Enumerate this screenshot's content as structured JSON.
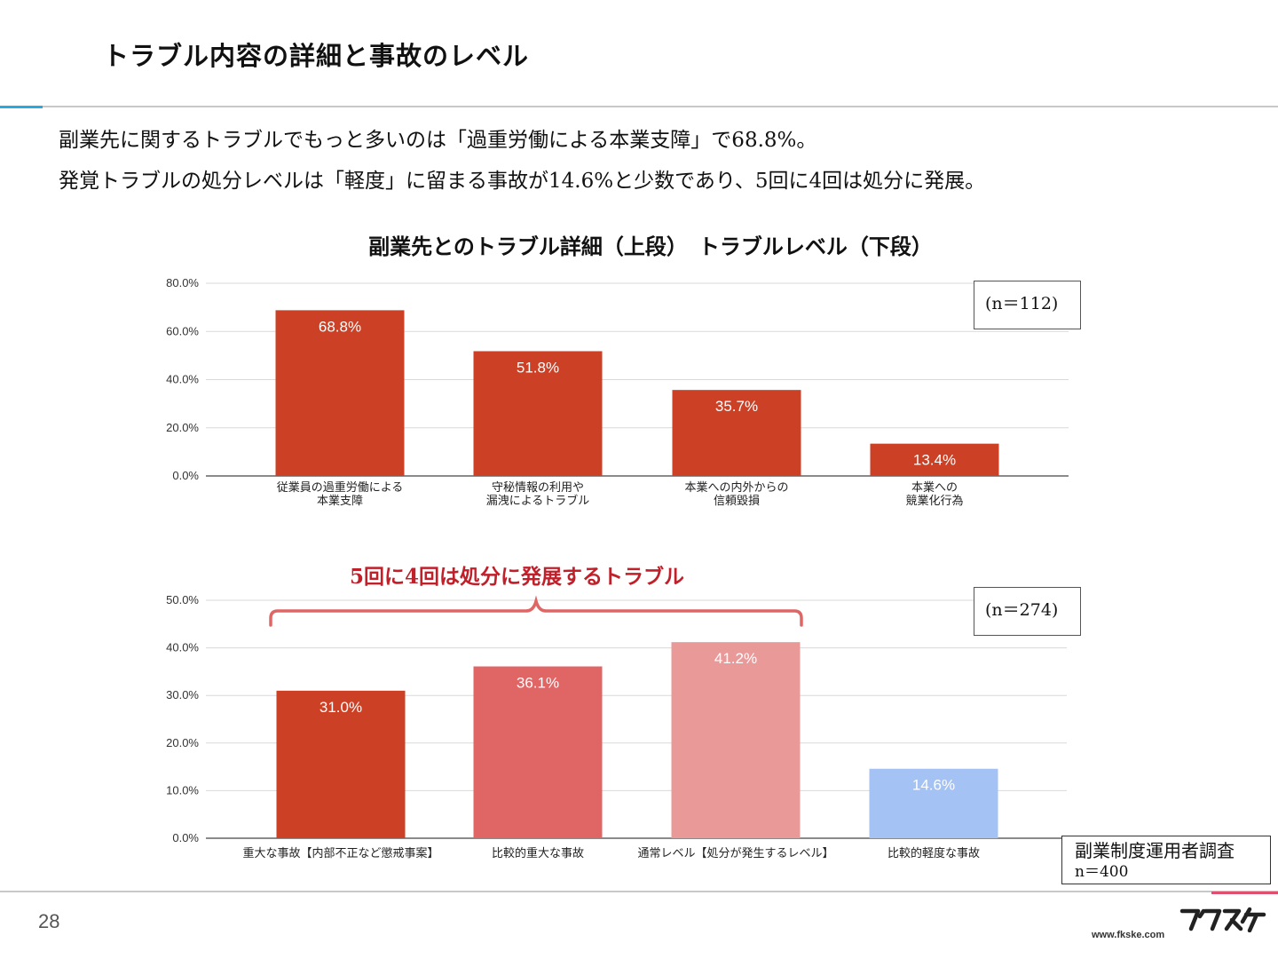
{
  "slide": {
    "title": "トラブル内容の詳細と事故のレベル",
    "summary_line1": "副業先に関するトラブルでもっと多いのは「過重労働による本業支障」で68.8%。",
    "summary_line2": "発覚トラブルの処分レベルは「軽度」に留まる事故が14.6%と少数であり、5回に4回は処分に発展。",
    "chart_heading": "副業先とのトラブル詳細（上段）　トラブルレベル（下段）",
    "callout": "5回に4回は処分に発展するトラブル",
    "survey_name": "副業制度運用者調査",
    "survey_n": "n＝400",
    "page_number": "28",
    "url": "www.fkske.com",
    "logo_text": "フクスケ",
    "accent_blue": "#29a9e0",
    "accent_pink": "#e0506e"
  },
  "chart_data": [
    {
      "type": "bar",
      "title": "",
      "n_label": "(n＝112)",
      "categories": [
        [
          "従業員の過重労働による",
          "本業支障"
        ],
        [
          "守秘情報の利用や",
          "漏洩によるトラブル"
        ],
        [
          "本業への内外からの",
          "信頼毀損"
        ],
        [
          "本業への",
          "競業化行為"
        ]
      ],
      "values": [
        68.8,
        51.8,
        35.7,
        13.4
      ],
      "value_labels": [
        "68.8%",
        "51.8%",
        "35.7%",
        "13.4%"
      ],
      "colors": [
        "#cc4125",
        "#cc4125",
        "#cc4125",
        "#cc4125"
      ],
      "ylim": [
        0,
        80
      ],
      "yticks": [
        "0.0%",
        "20.0%",
        "40.0%",
        "60.0%",
        "80.0%"
      ],
      "xlabel": "",
      "ylabel": "",
      "grid": true,
      "legend": "none"
    },
    {
      "type": "bar",
      "title": "",
      "n_label": "(n＝274)",
      "categories": [
        [
          "重大な事故【内部不正など懲戒事案】"
        ],
        [
          "比較的重大な事故"
        ],
        [
          "通常レベル【処分が発生するレベル】"
        ],
        [
          "比較的軽度な事故"
        ]
      ],
      "values": [
        31.0,
        36.1,
        41.2,
        14.6
      ],
      "value_labels": [
        "31.0%",
        "36.1%",
        "41.2%",
        "14.6%"
      ],
      "colors": [
        "#cc4125",
        "#e06666",
        "#ea9999",
        "#a4c2f4"
      ],
      "ylim": [
        0,
        50
      ],
      "yticks": [
        "0.0%",
        "10.0%",
        "20.0%",
        "30.0%",
        "40.0%",
        "50.0%"
      ],
      "xlabel": "",
      "ylabel": "",
      "grid": true,
      "legend": "none"
    }
  ]
}
